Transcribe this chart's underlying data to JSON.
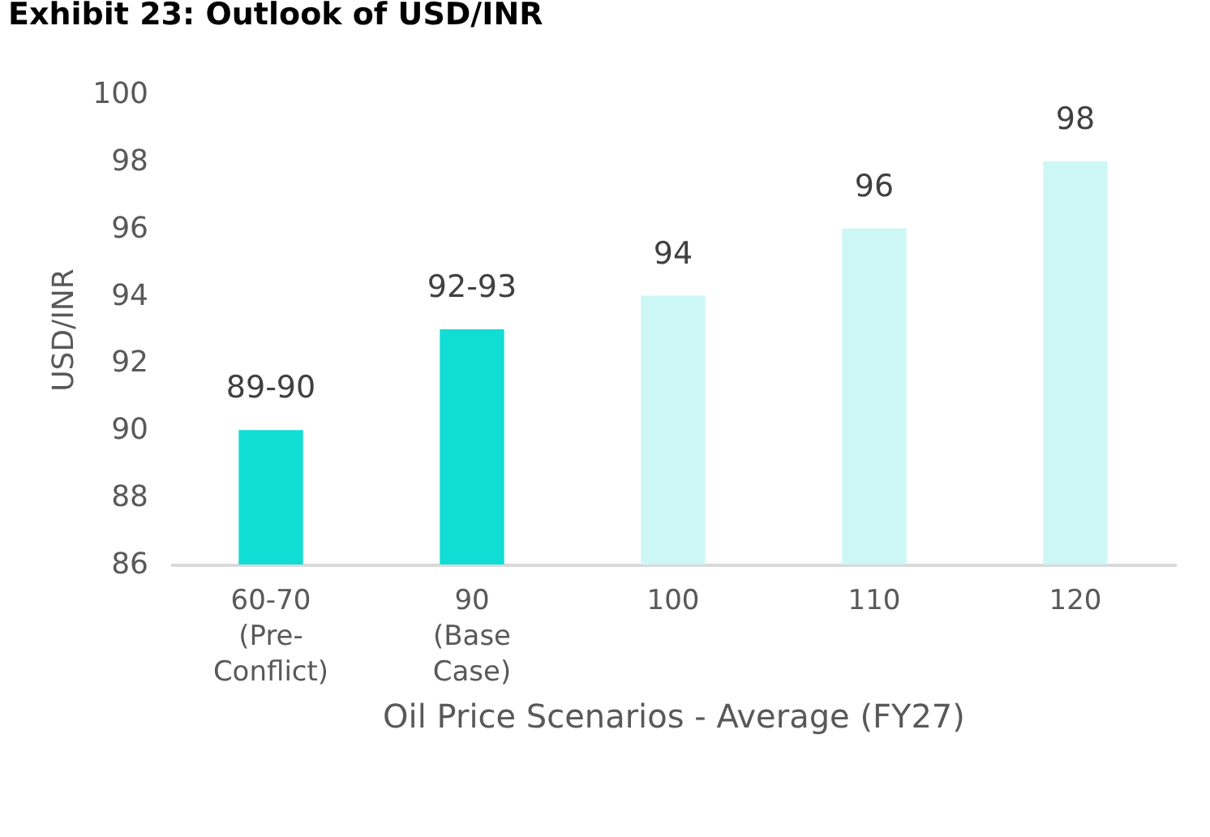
{
  "chart_data": {
    "type": "bar",
    "title": "Exhibit 23: Outlook of USD/INR",
    "xlabel": "Oil Price Scenarios - Average (FY27)",
    "ylabel": "USD/INR",
    "categories": [
      "60-70\n(Pre-\nConflict)",
      "90\n(Base\nCase)",
      "100",
      "110",
      "120"
    ],
    "values": [
      90,
      93,
      94,
      96,
      98
    ],
    "colors": [
      "#10ddd4",
      "#10ddd4",
      "#ccf7f6",
      "#ccf7f6",
      "#ccf7f6"
    ],
    "value_labels": [
      "89-90",
      "92-93",
      "94",
      "96",
      "98"
    ],
    "ylim": [
      86,
      100
    ],
    "yticks": [
      86,
      88,
      90,
      92,
      94,
      96,
      98,
      100
    ],
    "grid": false
  }
}
